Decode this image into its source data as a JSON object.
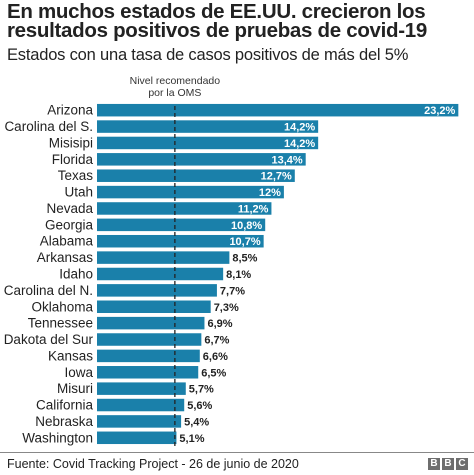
{
  "title": "En muchos estados de EE.UU. crecieron los resultados positivos de pruebas de covid-19",
  "subtitle": "Estados con una tasa de casos positivos de más del 5%",
  "footer": {
    "source": "Fuente: Covid Tracking Project - 26 de junio de 2020",
    "logo": [
      "B",
      "B",
      "C"
    ]
  },
  "colors": {
    "bar": "#1a80aa",
    "label_inside": "#ffffff",
    "label_outside": "#222222",
    "reference_line": "#222222"
  },
  "chart_data": {
    "type": "bar",
    "orientation": "horizontal",
    "categories": [
      "Arizona",
      "Carolina del S.",
      "Misisipi",
      "Florida",
      "Texas",
      "Utah",
      "Nevada",
      "Georgia",
      "Alabama",
      "Arkansas",
      "Idaho",
      "Carolina del N.",
      "Oklahoma",
      "Tennessee",
      "Dakota del Sur",
      "Kansas",
      "Iowa",
      "Misuri",
      "California",
      "Nebraska",
      "Washington"
    ],
    "values": [
      23.2,
      14.2,
      14.2,
      13.4,
      12.7,
      12,
      11.2,
      10.8,
      10.7,
      8.5,
      8.1,
      7.7,
      7.3,
      6.9,
      6.7,
      6.6,
      6.5,
      5.7,
      5.6,
      5.4,
      5.1
    ],
    "value_labels": [
      "23,2%",
      "14,2%",
      "14,2%",
      "13,4%",
      "12,7%",
      "12%",
      "11,2%",
      "10,8%",
      "10,7%",
      "8,5%",
      "8,1%",
      "7,7%",
      "7,3%",
      "6,9%",
      "6,7%",
      "6,6%",
      "6,5%",
      "5,7%",
      "5,6%",
      "5,4%",
      "5,1%"
    ],
    "xlim": [
      0,
      23.5
    ],
    "reference": {
      "value": 5,
      "label_lines": [
        "Nivel recomendado",
        "por la OMS"
      ]
    },
    "grid": false,
    "legend": "none"
  }
}
